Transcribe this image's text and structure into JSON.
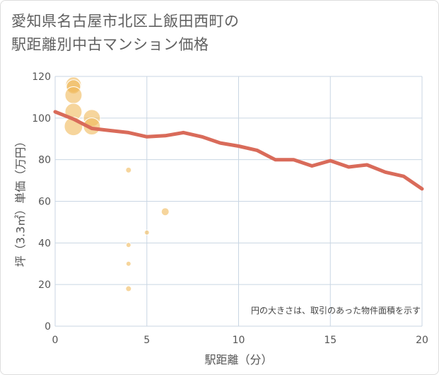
{
  "title": {
    "line1": "愛知県名古屋市北区上飯田西町の",
    "line2": "駅距離別中古マンション価格"
  },
  "colors": {
    "line": "#d96b5a",
    "bubble": "#f0b95a",
    "grid": "#c9d6e3",
    "plot_bg": "#ffffff"
  },
  "chart_data": {
    "type": "scatter",
    "xlabel": "駅距離（分）",
    "ylabel": "坪（3.3㎡）単価（万円）",
    "xlim": [
      0,
      20
    ],
    "ylim": [
      0,
      120
    ],
    "xticks": [
      "0",
      "5",
      "10",
      "15",
      "20"
    ],
    "yticks": [
      "0",
      "20",
      "40",
      "60",
      "80",
      "100",
      "120"
    ],
    "note": "円の大きさは、取引のあった物件面積を示す",
    "bubbles": [
      {
        "x": 1,
        "y": 116,
        "size": 11
      },
      {
        "x": 1,
        "y": 115,
        "size": 10
      },
      {
        "x": 1,
        "y": 111,
        "size": 12
      },
      {
        "x": 1,
        "y": 103,
        "size": 12
      },
      {
        "x": 1,
        "y": 96,
        "size": 13
      },
      {
        "x": 2,
        "y": 100,
        "size": 12
      },
      {
        "x": 2,
        "y": 96,
        "size": 12
      },
      {
        "x": 4,
        "y": 75,
        "size": 4
      },
      {
        "x": 4,
        "y": 39,
        "size": 3.5
      },
      {
        "x": 4,
        "y": 30,
        "size": 3.5
      },
      {
        "x": 4,
        "y": 18,
        "size": 4
      },
      {
        "x": 5,
        "y": 45,
        "size": 3.5
      },
      {
        "x": 6,
        "y": 55,
        "size": 5.5
      }
    ],
    "series": [
      {
        "name": "trend",
        "x": [
          0,
          1,
          2,
          3,
          4,
          5,
          6,
          7,
          8,
          9,
          10,
          11,
          12,
          13,
          14,
          15,
          16,
          17,
          18,
          19,
          20
        ],
        "values": [
          103,
          99.5,
          95,
          94,
          93,
          91,
          91.5,
          93,
          91,
          88,
          86.5,
          84.5,
          80,
          80,
          77,
          79.5,
          76.5,
          77.5,
          74,
          72,
          66
        ]
      }
    ]
  }
}
